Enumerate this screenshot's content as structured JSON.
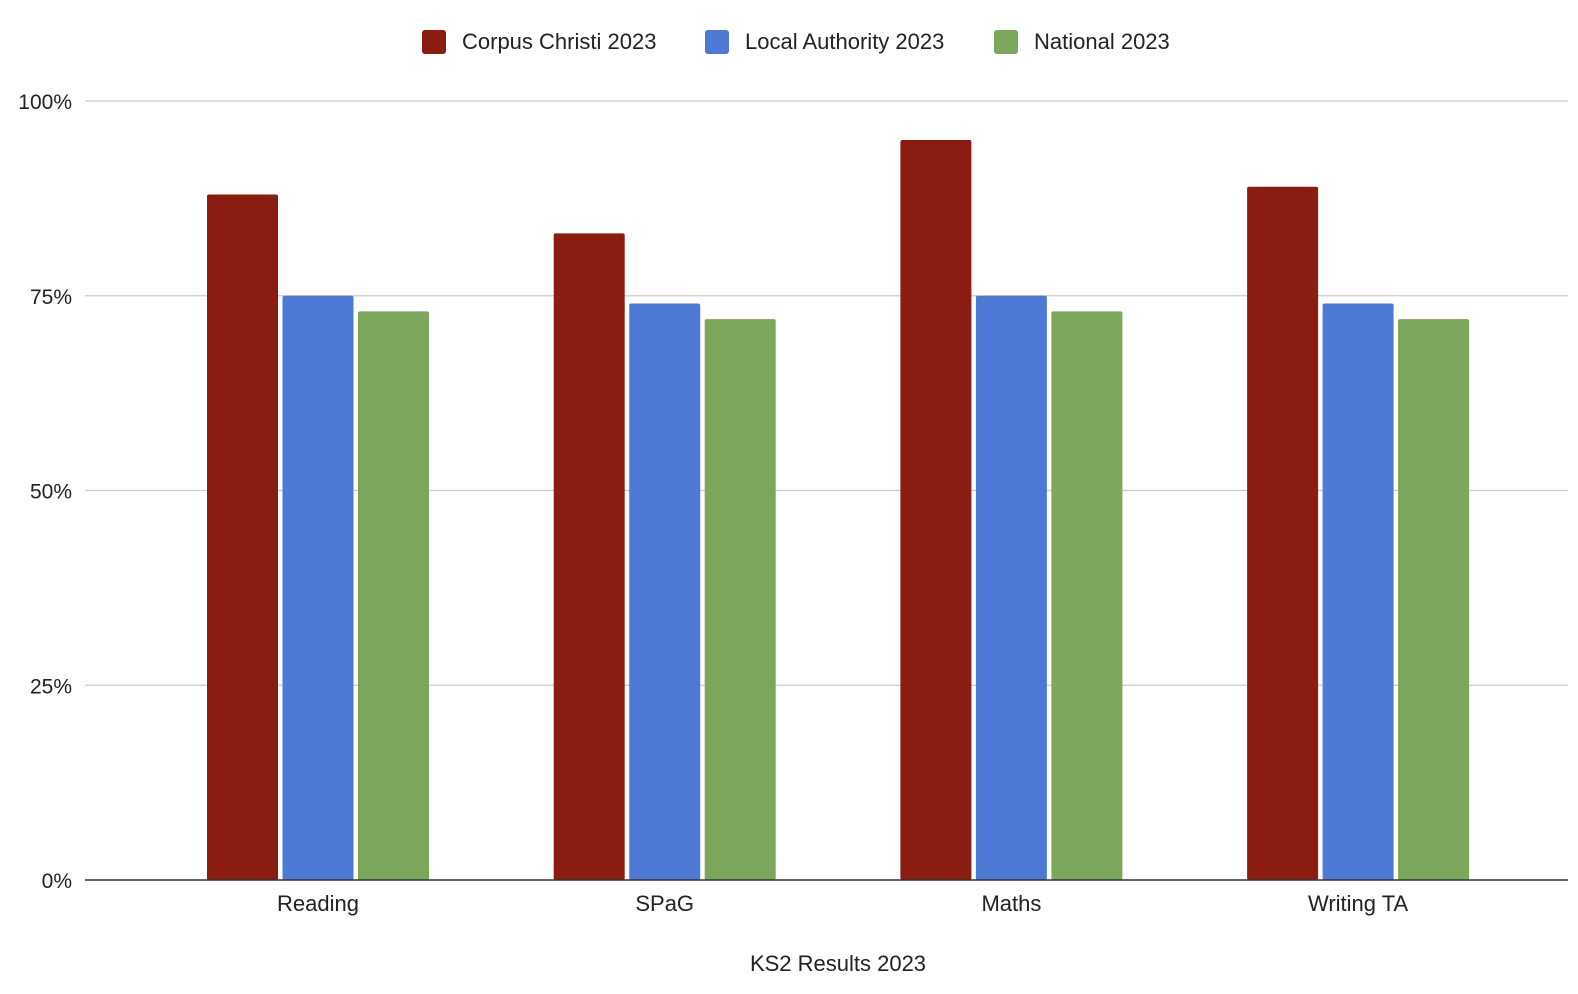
{
  "chart_data": {
    "type": "bar",
    "title": "",
    "xlabel": "KS2 Results 2023",
    "ylabel": "",
    "categories": [
      "Reading",
      "SPaG",
      "Maths",
      "Writing TA"
    ],
    "series": [
      {
        "name": "Corpus Christi 2023",
        "color": "#8B1C11",
        "values": [
          88,
          83,
          95,
          89
        ]
      },
      {
        "name": "Local Authority 2023",
        "color": "#4D79D4",
        "values": [
          75,
          74,
          75,
          74
        ]
      },
      {
        "name": "National 2023",
        "color": "#7BA65C",
        "values": [
          73,
          72,
          73,
          72
        ]
      }
    ],
    "ylim": [
      0,
      100
    ],
    "yticks": [
      0,
      25,
      50,
      75,
      100
    ],
    "ytick_labels": [
      "0%",
      "25%",
      "50%",
      "75%",
      "100%"
    ],
    "grid": true,
    "legend": "top-center"
  }
}
